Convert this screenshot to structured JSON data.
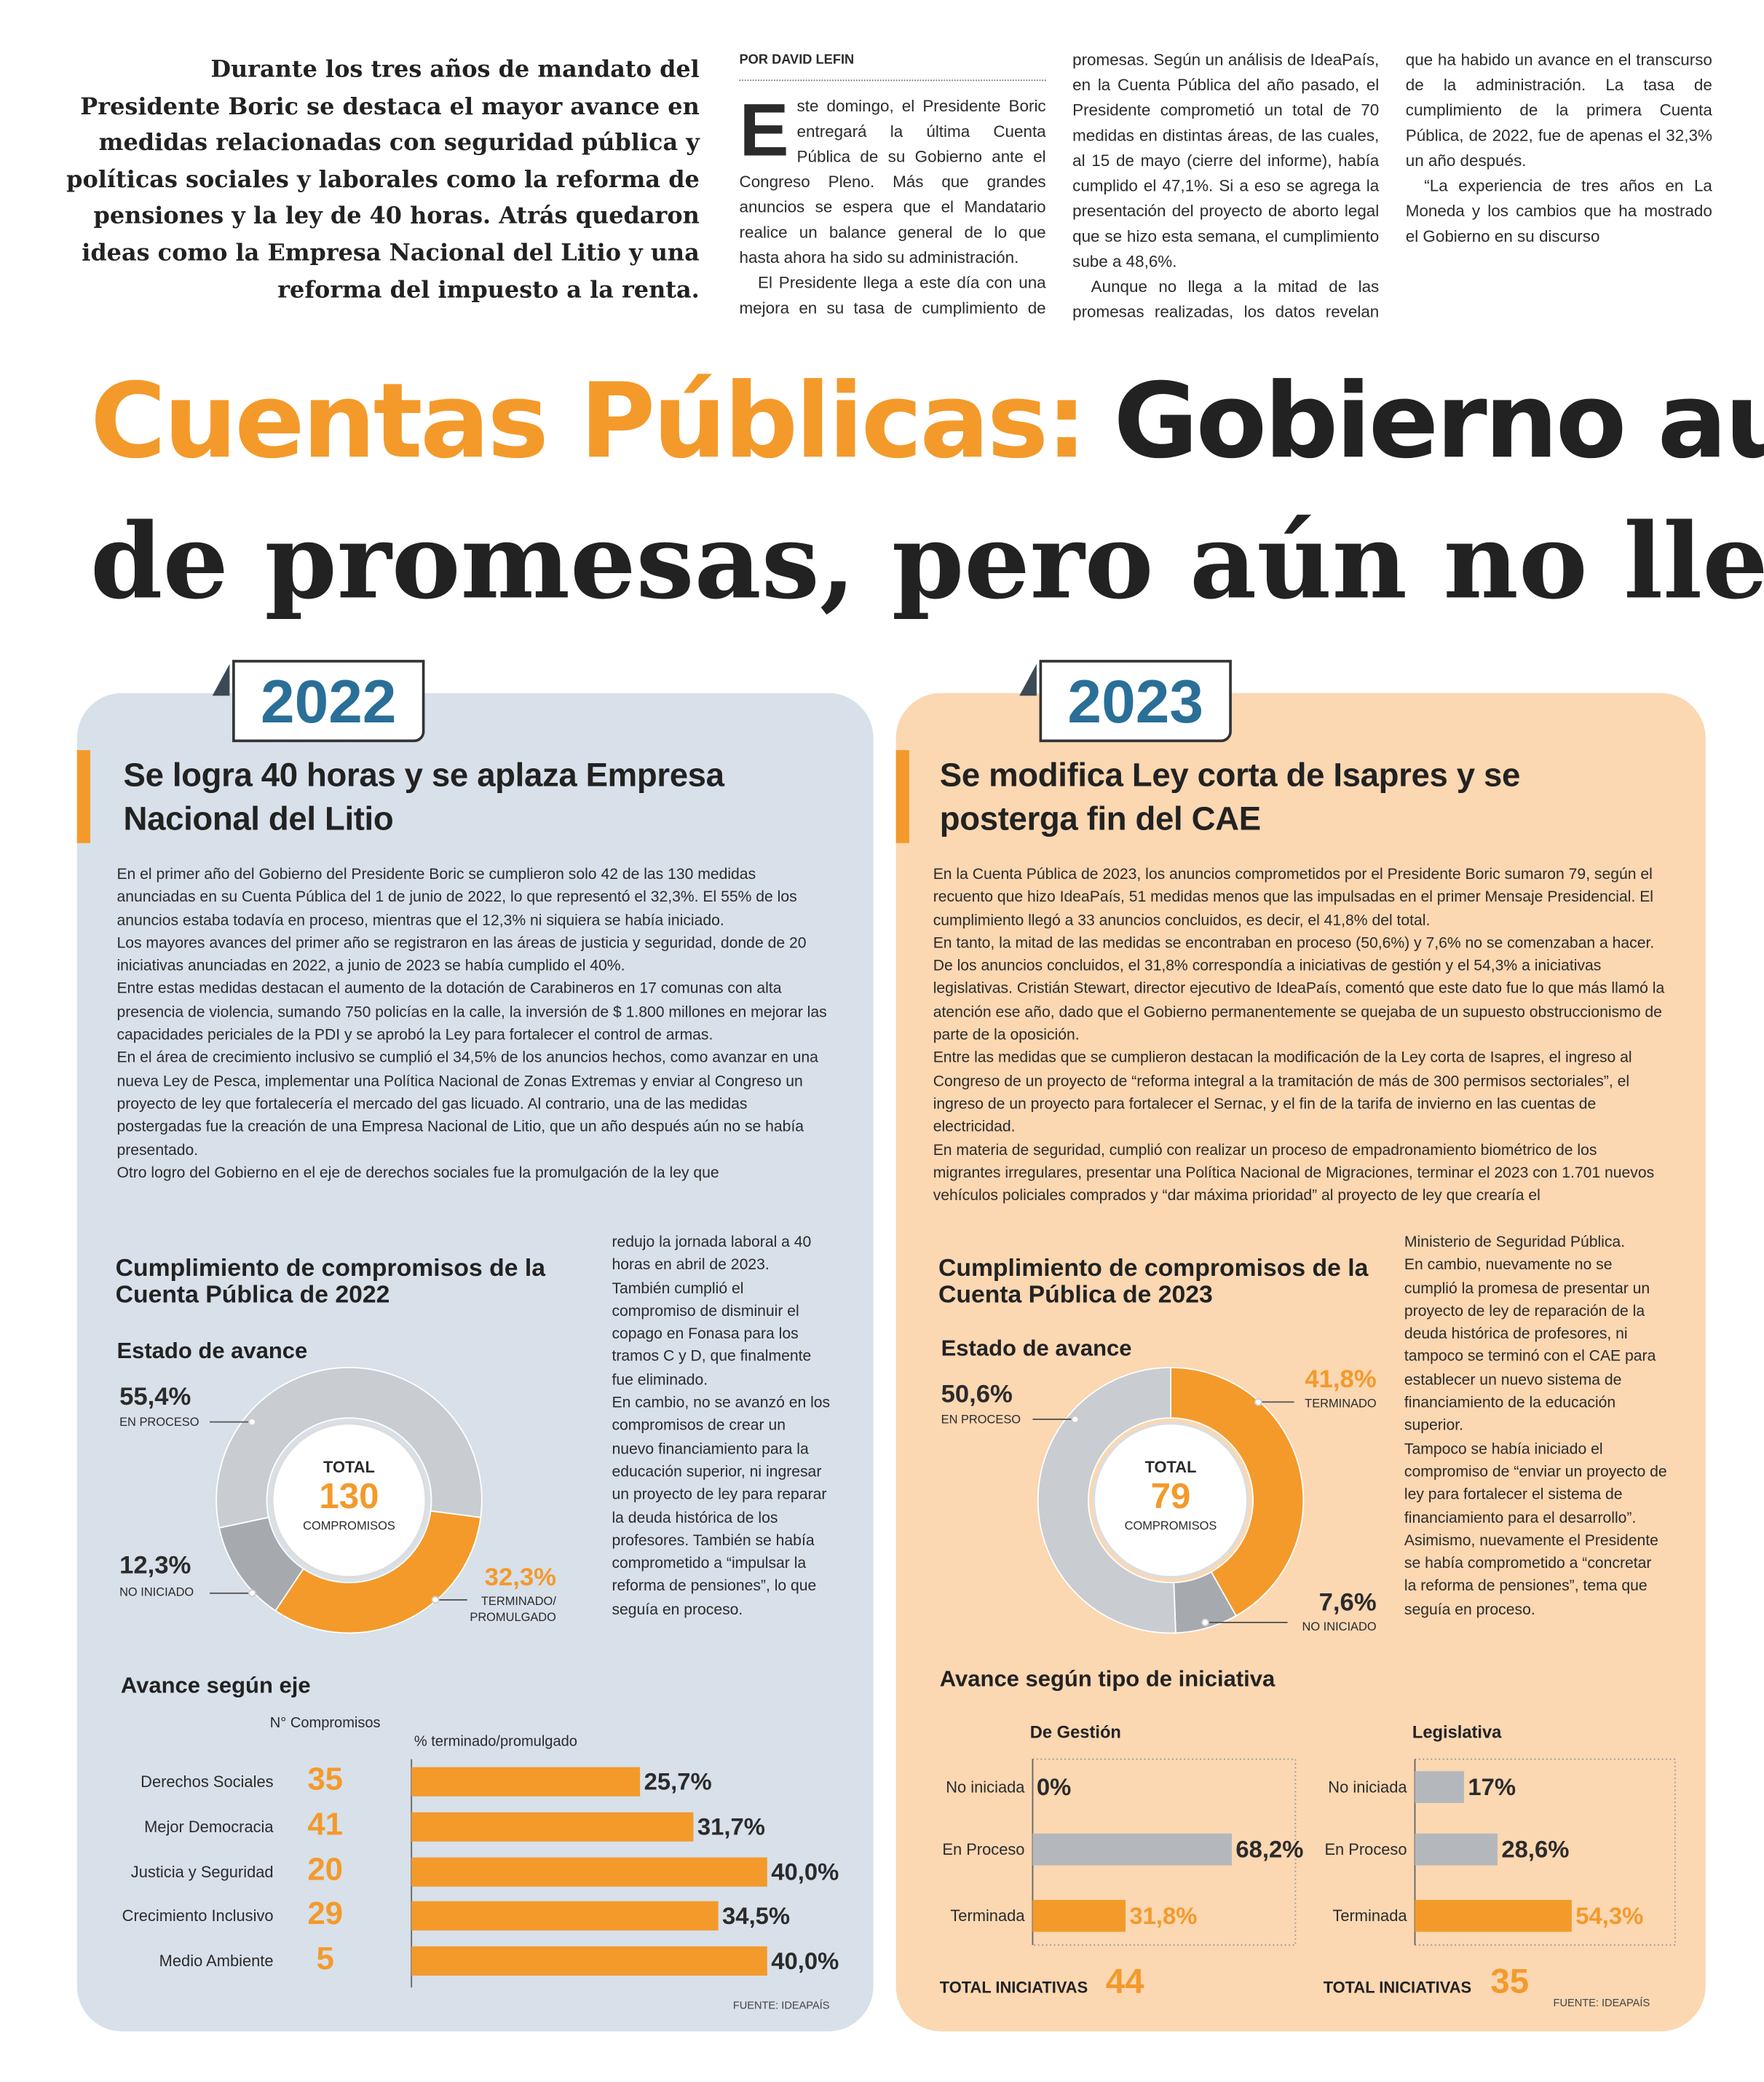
{
  "intro": "Durante los tres años de mandato del Presidente Boric se destaca el mayor avance en medidas relacionadas con seguridad pública y políticas sociales y laborales como la reforma de pensiones y la ley de 40 horas. Atrás quedaron ideas como la Empresa Nacional del Litio y una reforma del impuesto a la renta.",
  "byline": "POR DAVID LEFIN",
  "article": [
    "Este domingo, el Presidente Boric entregará la última Cuenta Pública de su Gobierno ante el Congreso Pleno. Más que grandes anuncios se espera que el Mandatario realice un balance general de lo que hasta ahora ha sido su administración.",
    "El Presidente llega a este día con una mejora en su tasa de cumplimiento de promesas. Según un análisis de IdeaPaís, en la Cuenta Pública del año pasado, el Presidente comprometió un total de 70 medidas en distintas áreas, de las cuales, al 15 de mayo (cierre del informe), había cumplido el 47,1%. Si a eso se agrega la presentación del proyecto de aborto legal que se hizo esta semana, el cumplimiento sube a 48,6%.",
    "Aunque no llega a la mitad de las promesas realizadas, los datos revelan que ha habido un avance en el transcurso de la administración. La tasa de cumplimiento de la primera Cuenta Pública, de 2022, fue de apenas el 32,3% un año después.",
    "“La experiencia de tres años en La Moneda y los cambios que ha mostrado el Gobierno en su discurso"
  ],
  "headline": {
    "highlight": "Cuentas Públicas:",
    "line1": "Gobierno aum",
    "line2": "de promesas, pero aún no llega"
  },
  "panels": [
    {
      "year": "2022",
      "title": "Se logra 40 horas y se aplaza Empresa Nacional del Litio",
      "body": [
        "En el primer año del Gobierno del Presidente Boric se cumplieron solo 42 de las 130 medidas anunciadas en su Cuenta Pública del 1 de junio de 2022, lo que representó el 32,3%. El 55% de los anuncios estaba todavía en proceso, mientras que el 12,3% ni siquiera se había iniciado.",
        "Los mayores avances del primer año se registraron en las áreas de justicia y seguridad, donde de 20 iniciativas anunciadas en 2022, a junio de 2023 se había cumplido el 40%.",
        "Entre estas medidas destacan el aumento de la dotación de Carabineros en 17 comunas con alta presencia de violencia, sumando 750 policías en la calle, la inversión de $ 1.800 millones en mejorar las capacidades periciales de la PDI y se aprobó la Ley para fortalecer el control de armas.",
        "En el área de crecimiento inclusivo se cumplió el 34,5% de los anuncios hechos, como avanzar en una nueva Ley de Pesca, implementar una Política Nacional de Zonas Extremas y enviar al Congreso un proyecto de ley que fortalecería el mercado del gas licuado. Al contrario, una de las medidas postergadas fue la creación de una Empresa Nacional de Litio, que un año después aún no se había presentado.",
        "Otro logro del Gobierno en el eje de derechos sociales fue la promulgación de la ley que"
      ],
      "side": [
        "redujo la jornada laboral a 40 horas en abril de 2023. También cumplió el compromiso de disminuir el copago en Fonasa para los tramos C y D, que finalmente fue eliminado.",
        "En cambio, no se avanzó en los compromisos de crear un nuevo financiamiento para la educación superior, ni ingresar un proyecto de ley para reparar la deuda histórica de los profesores. También se había comprometido a “impulsar la reforma de pensiones”, lo que seguía en proceso."
      ],
      "chart_heading": "Cumplimiento de compromisos de la Cuenta Pública de 2022",
      "donut_title": "Estado de avance",
      "bars_title": "Avance según eje",
      "source": "FUENTE: IDEAPAÍS"
    },
    {
      "year": "2023",
      "title": "Se modifica Ley corta de Isapres y se posterga fin del CAE",
      "body": [
        "En la Cuenta Pública de 2023, los anuncios comprometidos por el Presidente Boric sumaron 79, según el recuento que hizo IdeaPaís, 51 medidas menos que las impulsadas en el primer Mensaje Presidencial. El cumplimiento llegó a 33 anuncios concluidos, es decir, el 41,8% del total.",
        "En tanto, la mitad de las medidas se encontraban en proceso (50,6%) y 7,6% no se comenzaban a hacer.",
        "De los anuncios concluidos, el 31,8% correspondía a iniciativas de gestión y el 54,3% a iniciativas legislativas. Cristián Stewart, director ejecutivo de IdeaPaís, comentó que este dato fue lo que más llamó la atención ese año, dado que el Gobierno permanentemente se quejaba de un supuesto obstruccionismo de parte de la oposición.",
        "Entre las medidas que se cumplieron destacan la modificación de la Ley corta de Isapres, el ingreso al Congreso de un proyecto de “reforma integral a la tramitación de más de 300 permisos sectoriales”, el ingreso de un proyecto para fortalecer el Sernac, y el fin de la tarifa de invierno en las cuentas de electricidad.",
        "En materia de seguridad, cumplió con realizar un proceso de empadronamiento biométrico de los migrantes irregulares, presentar una Política Nacional de Migraciones, terminar el 2023 con 1.701 nuevos vehículos policiales comprados y “dar máxima prioridad” al proyecto de ley que crearía el"
      ],
      "side": [
        "Ministerio de Seguridad Pública.",
        "En cambio, nuevamente no se cumplió la promesa de presentar un proyecto de ley de reparación de la deuda histórica de profesores, ni tampoco se terminó con el CAE para establecer un nuevo sistema de financiamiento de la educación superior.",
        "Tampoco se había iniciado el compromiso de “enviar un proyecto de ley para fortalecer el sistema de financiamiento para el desarrollo”. Asimismo, nuevamente el Presidente se había comprometido a “concretar la reforma de pensiones”, tema que seguía en proceso."
      ],
      "chart_heading": "Cumplimiento de compromisos de la Cuenta Pública de 2023",
      "donut_title": "Estado de avance",
      "bars_title": "Avance según tipo de iniciativa",
      "source": "FUENTE: IDEAPAÍS"
    }
  ],
  "chart_data": [
    {
      "type": "pie",
      "donut": true,
      "center_label": "TOTAL",
      "center_value": 130,
      "center_unit": "COMPROMISOS",
      "categories": [
        "EN PROCESO",
        "TERMINADO/ PROMULGADO",
        "NO INICIADO"
      ],
      "values": [
        55.4,
        32.3,
        12.3
      ],
      "value_labels": [
        "55,4%",
        "32,3%",
        "12,3%"
      ],
      "colors": [
        "#c9ccd0",
        "#f39a2b",
        "#a6aaae"
      ],
      "label_colors": [
        "#2b2b2b",
        "#f39a2b",
        "#2b2b2b"
      ]
    },
    {
      "type": "bar",
      "orientation": "horizontal",
      "count_header": "N° Compromisos",
      "value_header": "% terminado/promulgado",
      "categories": [
        "Derechos Sociales",
        "Mejor Democracia",
        "Justicia y Seguridad",
        "Crecimiento Inclusivo",
        "Medio Ambiente"
      ],
      "counts": [
        35,
        41,
        20,
        29,
        5
      ],
      "values": [
        25.7,
        31.7,
        40.0,
        34.5,
        40.0
      ],
      "value_labels": [
        "25,7%",
        "31,7%",
        "40,0%",
        "34,5%",
        "40,0%"
      ],
      "colors": [
        "#f39a2b",
        "#f39a2b",
        "#f39a2b",
        "#f39a2b",
        "#f39a2b"
      ],
      "label_colors": [
        "#2b2b2b",
        "#2b2b2b",
        "#2b2b2b",
        "#2b2b2b",
        "#2b2b2b"
      ],
      "xlim": [
        0,
        40
      ]
    },
    {
      "type": "pie",
      "donut": true,
      "center_label": "TOTAL",
      "center_value": 79,
      "center_unit": "COMPROMISOS",
      "categories": [
        "TERMINADO",
        "NO INICIADO",
        "EN PROCESO"
      ],
      "values": [
        41.8,
        7.6,
        50.6
      ],
      "value_labels": [
        "41,8%",
        "7,6%",
        "50,6%"
      ],
      "colors": [
        "#f39a2b",
        "#a6aaae",
        "#c9ccd0"
      ],
      "label_colors": [
        "#f39a2b",
        "#2b2b2b",
        "#2b2b2b"
      ]
    },
    {
      "type": "bar",
      "orientation": "horizontal",
      "title": "De Gestión",
      "categories": [
        "No iniciada",
        "En Proceso",
        "Terminada"
      ],
      "values": [
        0,
        68.2,
        31.8
      ],
      "value_labels": [
        "0%",
        "68,2%",
        "31,8%"
      ],
      "colors": [
        "#b4b8bc",
        "#b4b8bc",
        "#f39a2b"
      ],
      "label_colors": [
        "#2b2b2b",
        "#2b2b2b",
        "#f39a2b"
      ],
      "xlim": [
        0,
        80
      ],
      "total_label": "TOTAL INICIATIVAS",
      "total": 44
    },
    {
      "type": "bar",
      "orientation": "horizontal",
      "title": "Legislativa",
      "categories": [
        "No iniciada",
        "En Proceso",
        "Terminada"
      ],
      "values": [
        17,
        28.6,
        54.3
      ],
      "value_labels": [
        "17%",
        "28,6%",
        "54,3%"
      ],
      "colors": [
        "#b4b8bc",
        "#b4b8bc",
        "#f39a2b"
      ],
      "label_colors": [
        "#2b2b2b",
        "#2b2b2b",
        "#f39a2b"
      ],
      "xlim": [
        0,
        80
      ],
      "total_label": "TOTAL INICIATIVAS",
      "total": 35
    }
  ]
}
